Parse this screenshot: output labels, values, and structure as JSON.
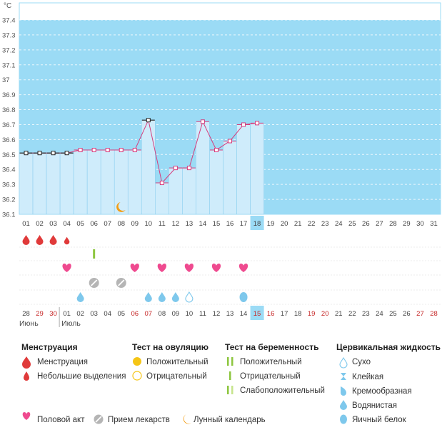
{
  "chart_data": {
    "type": "bar",
    "y_unit": "°C",
    "ylim": [
      36.1,
      37.4
    ],
    "y_ticks": [
      "36.1",
      "36.2",
      "36.3",
      "36.4",
      "36.5",
      "36.6",
      "36.7",
      "36.8",
      "36.9",
      "37",
      "37.1",
      "37.2",
      "37.3",
      "37.4"
    ],
    "grid": true,
    "days": [
      "01",
      "02",
      "03",
      "04",
      "05",
      "06",
      "07",
      "08",
      "09",
      "10",
      "11",
      "12",
      "13",
      "14",
      "15",
      "16",
      "17",
      "18",
      "19",
      "20",
      "21",
      "22",
      "23",
      "24",
      "25",
      "26",
      "27",
      "28",
      "29",
      "30",
      "31"
    ],
    "highlight_day": "18",
    "temperatures": [
      36.51,
      36.51,
      36.51,
      36.51,
      36.53,
      36.53,
      36.53,
      36.53,
      36.53,
      36.73,
      36.31,
      36.41,
      36.41,
      36.72,
      36.53,
      36.59,
      36.7,
      36.71
    ],
    "black_markers_days": [
      "01",
      "02",
      "03",
      "04",
      "10"
    ],
    "calendar_row": {
      "dates": [
        "28",
        "29",
        "30",
        "01",
        "02",
        "03",
        "04",
        "05",
        "06",
        "07",
        "08",
        "09",
        "10",
        "11",
        "12",
        "13",
        "14",
        "15",
        "16",
        "17",
        "18",
        "19",
        "20",
        "21",
        "22",
        "23",
        "24",
        "25",
        "26",
        "27",
        "28"
      ],
      "red_indices": [
        1,
        2,
        8,
        9,
        17,
        18,
        21,
        22,
        29,
        30
      ],
      "highlight_index": 17,
      "month_labels": [
        {
          "label": "Июнь",
          "index": 0
        },
        {
          "label": "Июль",
          "index": 3
        }
      ]
    },
    "symbols": {
      "moon_day": 8,
      "menstruation_days": [
        1,
        2,
        3
      ],
      "light_discharge_days": [
        4
      ],
      "ovulation_test_days": [
        6
      ],
      "intercourse_days": [
        4,
        9,
        11,
        13,
        15,
        17
      ],
      "medication_days": [
        6,
        8
      ],
      "cervical_fluid": [
        {
          "day": 5,
          "kind": "watery"
        },
        {
          "day": 10,
          "kind": "watery"
        },
        {
          "day": 11,
          "kind": "watery"
        },
        {
          "day": 12,
          "kind": "watery"
        },
        {
          "day": 13,
          "kind": "dry"
        },
        {
          "day": 17,
          "kind": "egg_white"
        }
      ]
    }
  },
  "colors": {
    "bar": "#cfecfb",
    "bar_stroke": "#8fd0f0",
    "background": "#9bdbf5",
    "line": "#d63c7c",
    "red": "#e03a3a",
    "heart": "#ef4a8f",
    "green": "#8dc63f",
    "light_green": "#c6e48b",
    "yellow": "#f5c516",
    "orange": "#f39c12",
    "drop_blue": "#7ec8ec",
    "gray": "#b5b5b5"
  },
  "legend": {
    "menstruation": {
      "title": "Менструация",
      "items": [
        "Менструация",
        "Небольшие выделения"
      ]
    },
    "ovulation_test": {
      "title": "Тест на овуляцию",
      "items": [
        "Положительный",
        "Отрицательный"
      ]
    },
    "pregnancy_test": {
      "title": "Тест на беременность",
      "items": [
        "Положительный",
        "Отрицательный",
        "Слабоположительный"
      ]
    },
    "cervical_fluid": {
      "title": "Цервикальная жидкость",
      "items": [
        "Сухо",
        "Клейкая",
        "Кремообразная",
        "Водянистая",
        "Яичный белок"
      ]
    },
    "bottom": [
      "Половой акт",
      "Прием лекарств",
      "Лунный календарь"
    ]
  }
}
